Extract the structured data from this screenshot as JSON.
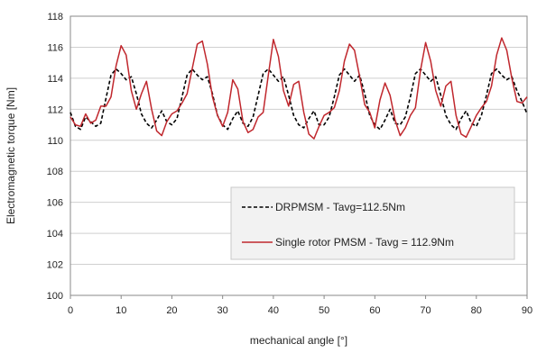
{
  "chart_data": {
    "type": "line",
    "xlabel": "mechanical angle [°]",
    "ylabel": "Electromagnetic  torque [Nm]",
    "xlim": [
      0,
      90
    ],
    "ylim": [
      100,
      118
    ],
    "x_ticks": [
      "0",
      "10",
      "20",
      "30",
      "40",
      "50",
      "60",
      "70",
      "80",
      "90"
    ],
    "y_ticks": [
      "100",
      "102",
      "104",
      "106",
      "108",
      "110",
      "112",
      "114",
      "116",
      "118"
    ],
    "grid": "horizontal",
    "legend_position": "bottom-right",
    "series": [
      {
        "name": "DRPMSM - Tavg=112.5Nm",
        "color": "#000000",
        "style": "dashed",
        "x": [
          0,
          1,
          2,
          3,
          4,
          5,
          6,
          7,
          8,
          9,
          10,
          11,
          12,
          13,
          14,
          15,
          16,
          17,
          18,
          19,
          20,
          21,
          22,
          23,
          24,
          25,
          26,
          27,
          28,
          29,
          30,
          31,
          32,
          33,
          34,
          35,
          36,
          37,
          38,
          39,
          40,
          41,
          42,
          43,
          44,
          45,
          46,
          47,
          48,
          49,
          50,
          51,
          52,
          53,
          54,
          55,
          56,
          57,
          58,
          59,
          60,
          61,
          62,
          63,
          64,
          65,
          66,
          67,
          68,
          69,
          70,
          71,
          72,
          73,
          74,
          75,
          76,
          77,
          78,
          79,
          80,
          81,
          82,
          83,
          84,
          85,
          86,
          87,
          88,
          89,
          90
        ],
        "values": [
          111.8,
          110.9,
          110.7,
          111.5,
          111.2,
          110.9,
          111.1,
          112.7,
          114.2,
          114.6,
          114.3,
          113.9,
          114.1,
          113.0,
          111.7,
          111.1,
          110.8,
          111.3,
          111.9,
          111.2,
          111.0,
          111.4,
          112.8,
          114.2,
          114.6,
          114.2,
          113.9,
          114.1,
          113.0,
          111.6,
          111.0,
          110.7,
          111.4,
          111.9,
          111.1,
          110.9,
          111.5,
          112.9,
          114.3,
          114.6,
          114.2,
          113.8,
          114.1,
          112.9,
          111.6,
          111.0,
          110.8,
          111.4,
          111.9,
          111.0,
          111.0,
          111.5,
          112.8,
          114.2,
          114.6,
          114.2,
          113.8,
          114.2,
          113.0,
          111.6,
          111.0,
          110.7,
          111.3,
          112.0,
          111.1,
          111.0,
          111.5,
          112.8,
          114.3,
          114.6,
          114.2,
          113.8,
          114.1,
          112.9,
          111.6,
          111.0,
          110.7,
          111.4,
          111.9,
          111.1,
          110.9,
          111.6,
          112.9,
          114.3,
          114.6,
          114.2,
          113.9,
          114.1,
          113.2,
          112.5,
          111.7
        ]
      },
      {
        "name": "Single rotor PMSM - Tavg = 112.9Nm",
        "color": "#c0272d",
        "style": "solid",
        "x": [
          0,
          1,
          2,
          3,
          4,
          5,
          6,
          7,
          8,
          9,
          10,
          11,
          12,
          13,
          14,
          15,
          16,
          17,
          18,
          19,
          20,
          21,
          22,
          23,
          24,
          25,
          26,
          27,
          28,
          29,
          30,
          31,
          32,
          33,
          34,
          35,
          36,
          37,
          38,
          39,
          40,
          41,
          42,
          43,
          44,
          45,
          46,
          47,
          48,
          49,
          50,
          51,
          52,
          53,
          54,
          55,
          56,
          57,
          58,
          59,
          60,
          61,
          62,
          63,
          64,
          65,
          66,
          67,
          68,
          69,
          70,
          71,
          72,
          73,
          74,
          75,
          76,
          77,
          78,
          79,
          80,
          81,
          82,
          83,
          84,
          85,
          86,
          87,
          88,
          89,
          90
        ],
        "values": [
          111.5,
          111.0,
          110.9,
          111.7,
          111.1,
          111.3,
          112.2,
          112.2,
          112.8,
          114.8,
          116.1,
          115.5,
          113.2,
          112.0,
          113.0,
          113.8,
          112.0,
          110.6,
          110.3,
          111.2,
          111.7,
          111.9,
          112.4,
          113.0,
          114.6,
          116.2,
          116.4,
          114.9,
          112.8,
          111.6,
          110.9,
          111.8,
          113.9,
          113.3,
          111.2,
          110.5,
          110.7,
          111.5,
          111.8,
          114.2,
          116.5,
          115.4,
          113.2,
          112.2,
          113.6,
          113.8,
          111.8,
          110.4,
          110.1,
          110.9,
          111.6,
          111.8,
          112.1,
          113.2,
          115.1,
          116.2,
          115.8,
          114.1,
          112.3,
          111.8,
          110.8,
          112.6,
          113.7,
          112.9,
          111.3,
          110.3,
          110.8,
          111.6,
          112.1,
          114.5,
          116.3,
          115.1,
          113.2,
          112.2,
          113.5,
          113.8,
          111.6,
          110.4,
          110.2,
          110.9,
          111.6,
          112.1,
          112.5,
          113.5,
          115.5,
          116.6,
          115.8,
          114.0,
          112.5,
          112.4,
          112.8
        ]
      }
    ]
  }
}
